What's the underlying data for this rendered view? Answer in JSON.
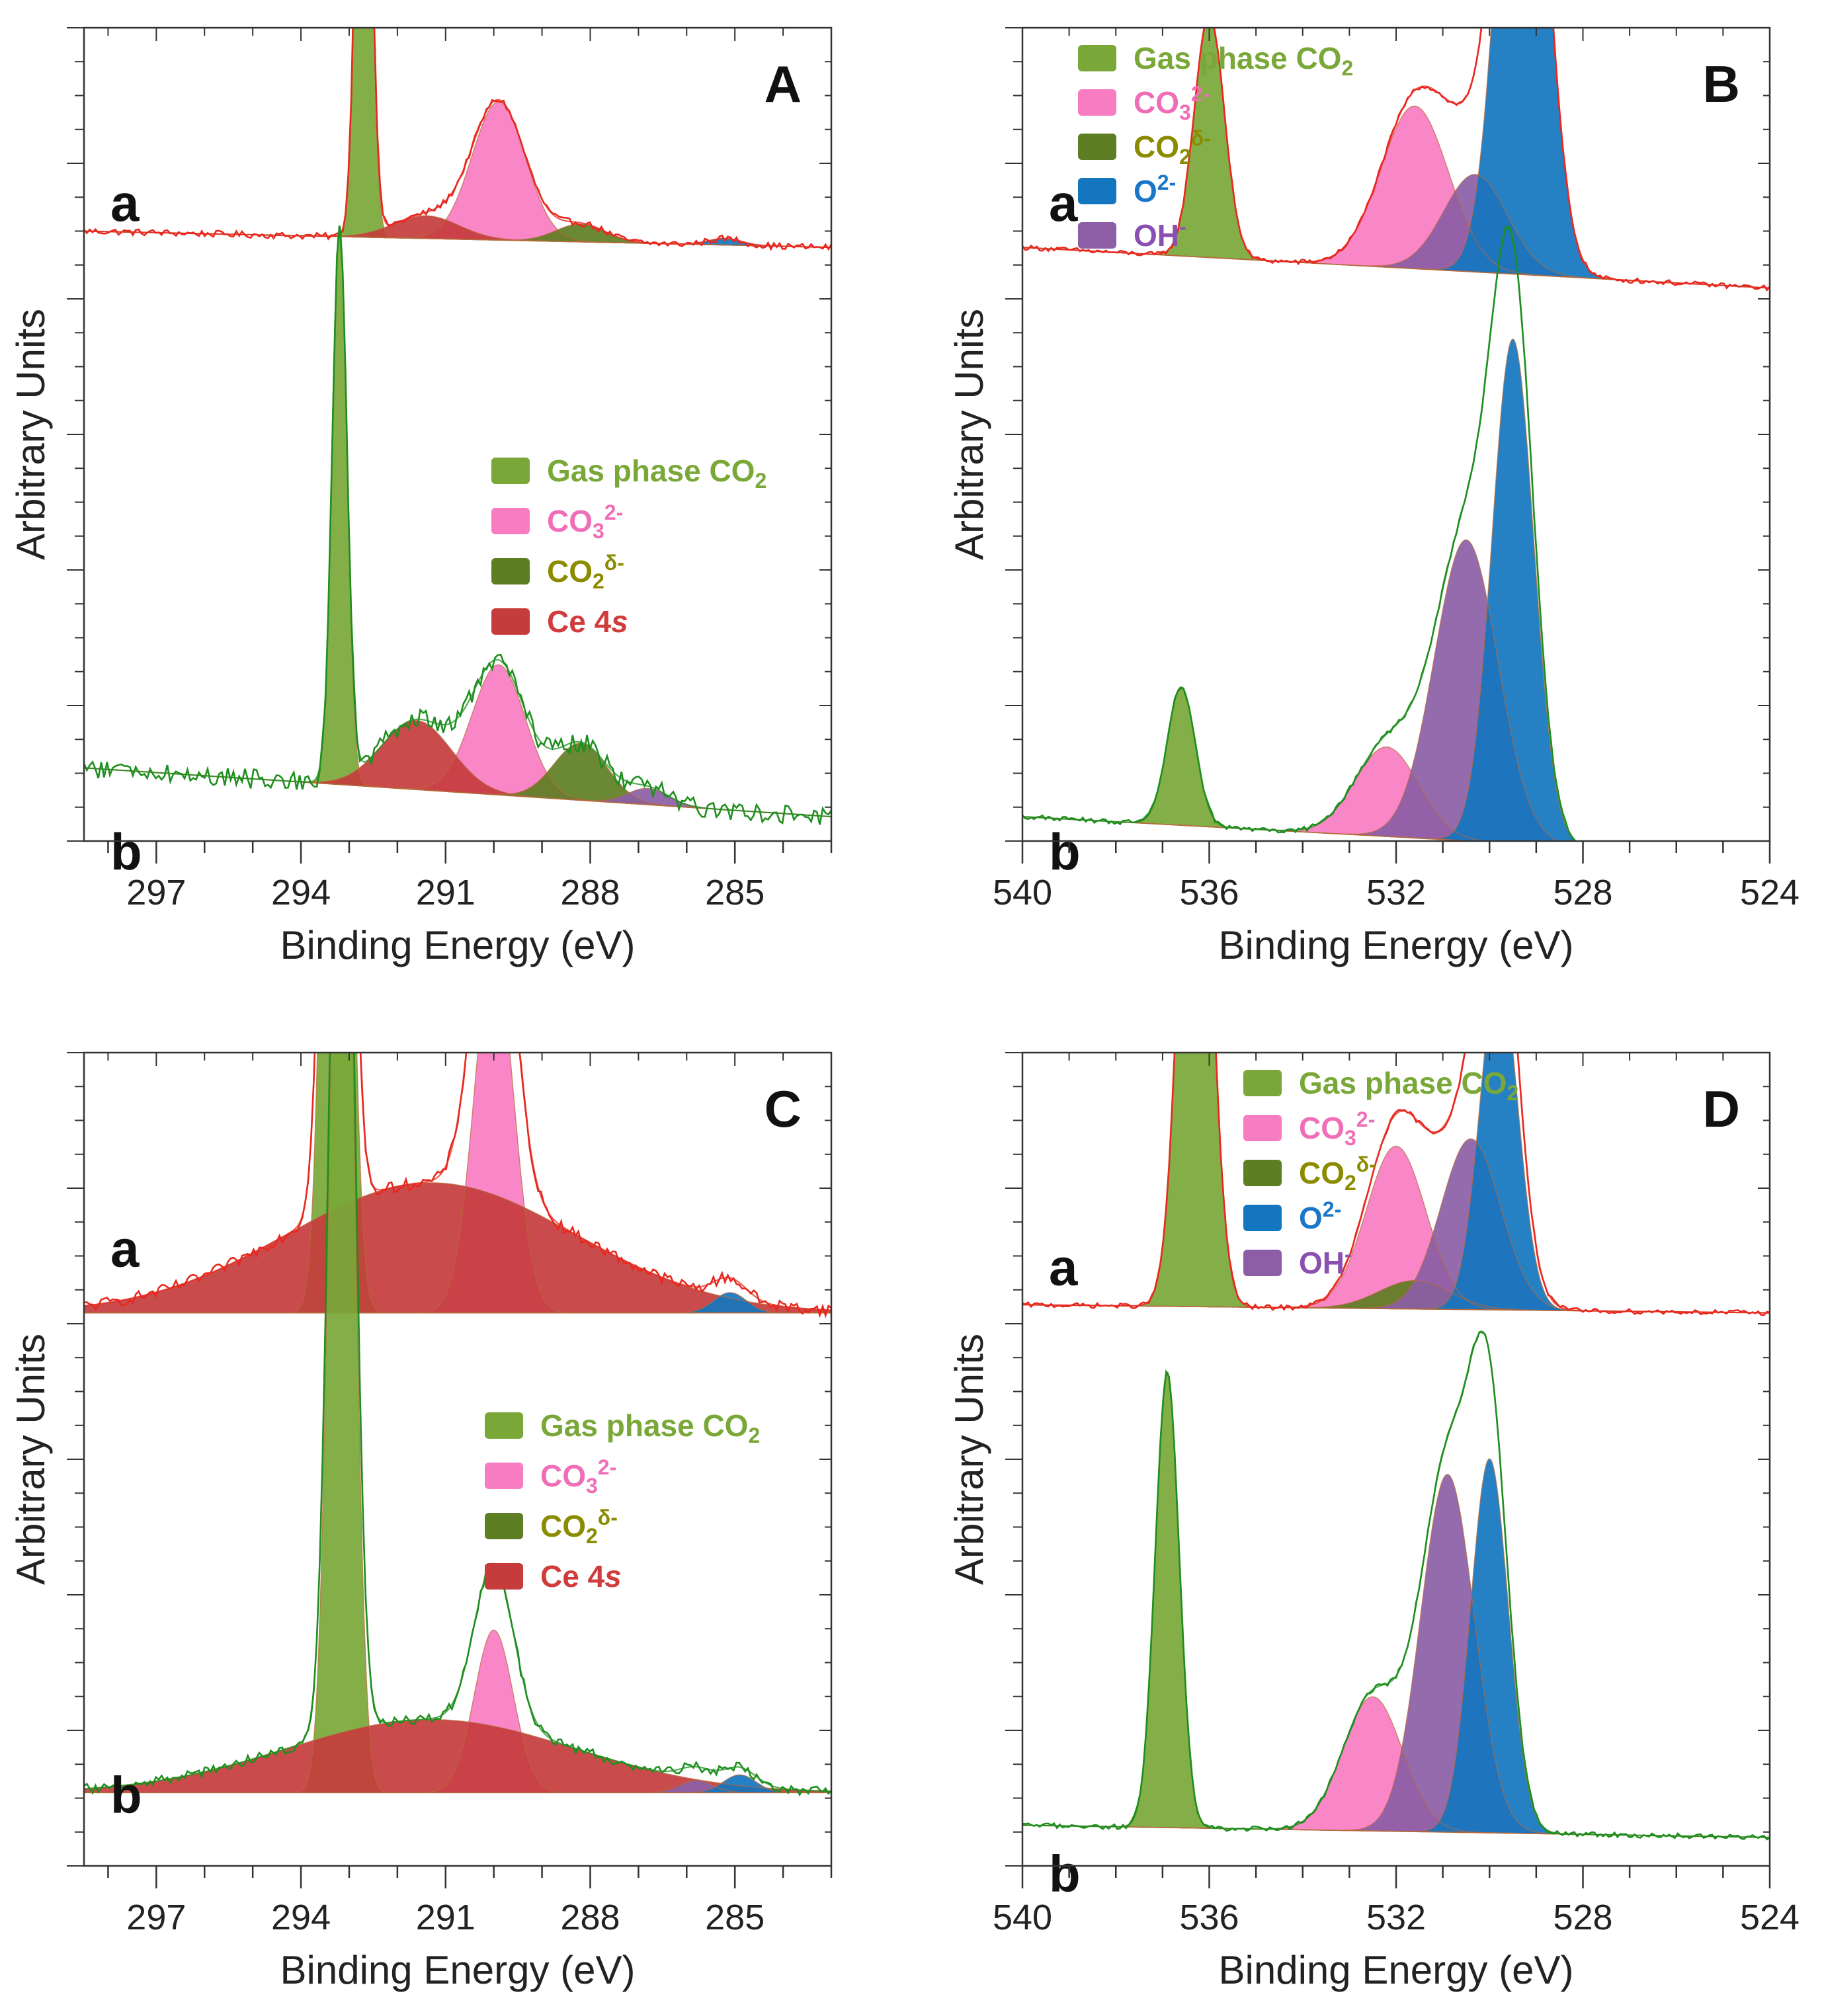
{
  "chart_data": [
    {
      "type": "area",
      "panel": "A",
      "xlabel": "Binding Energy (eV)",
      "ylabel": "Arbitrary Units",
      "xlim": [
        298.5,
        283.0
      ],
      "x_ticks": [
        297,
        294,
        291,
        288,
        285
      ],
      "legend": {
        "placement": "right, beside trace b",
        "entries": [
          {
            "component": "gas",
            "label": "Gas phase CO",
            "sub": "2",
            "sup": "",
            "italic": "",
            "color": "#79a838",
            "text_color": "#79a838"
          },
          {
            "component": "co3",
            "label": "CO",
            "sub": "3",
            "sup": "2-",
            "italic": "",
            "color": "#f87cc2",
            "text_color": "#f06db7"
          },
          {
            "component": "co2d",
            "label": "CO",
            "sub": "2",
            "sup": "δ-",
            "italic": "",
            "color": "#5e7e23",
            "text_color": "#8b8b00"
          },
          {
            "component": "ce4s",
            "label": "Ce 4",
            "sub": "",
            "sup": "",
            "italic": "s",
            "color": "#c63c3c",
            "text_color": "#d23b3b"
          }
        ]
      },
      "traces": [
        {
          "label": "a",
          "envelope_color": "#e8281f",
          "raw_color": "#e8281f",
          "offset": 0.73,
          "noise": 0.004,
          "baseline": {
            "x": [
              298.5,
              283.0
            ],
            "y": [
              0.02,
              0.0
            ]
          },
          "peaks": [
            {
              "component": "gas",
              "center": 292.7,
              "fwhm": 0.34,
              "height": 0.82
            },
            {
              "component": "co3",
              "center": 289.9,
              "fwhm": 1.3,
              "height": 0.17
            },
            {
              "component": "ce4s",
              "center": 291.4,
              "fwhm": 1.6,
              "height": 0.028
            },
            {
              "component": "co2d",
              "center": 288.2,
              "fwhm": 1.2,
              "height": 0.022
            },
            {
              "component": "o2",
              "center": 285.2,
              "fwhm": 0.8,
              "height": 0.008
            }
          ]
        },
        {
          "label": "b",
          "envelope_color": "#1e8f1e",
          "raw_color": "#1e8f1e",
          "offset": 0.03,
          "noise": 0.012,
          "baseline": {
            "x": [
              298.5,
              283.0
            ],
            "y": [
              0.06,
              0.0
            ]
          },
          "peaks": [
            {
              "component": "gas",
              "center": 293.2,
              "fwhm": 0.36,
              "height": 0.68
            },
            {
              "component": "co3",
              "center": 289.9,
              "fwhm": 1.3,
              "height": 0.16
            },
            {
              "component": "ce4s",
              "center": 291.6,
              "fwhm": 1.7,
              "height": 0.085
            },
            {
              "component": "co2d",
              "center": 288.2,
              "fwhm": 1.3,
              "height": 0.07
            },
            {
              "component": "oh",
              "center": 286.8,
              "fwhm": 1.0,
              "height": 0.02
            }
          ]
        }
      ]
    },
    {
      "type": "area",
      "panel": "B",
      "xlabel": "Binding Energy (eV)",
      "ylabel": "Arbitrary Units",
      "xlim": [
        540,
        524
      ],
      "x_ticks": [
        540,
        536,
        532,
        528,
        524
      ],
      "legend": {
        "placement": "top-left",
        "entries": [
          {
            "component": "gas",
            "label": "Gas phase CO",
            "sub": "2",
            "sup": "",
            "italic": "",
            "color": "#79a838",
            "text_color": "#79a838"
          },
          {
            "component": "co3",
            "label": "CO",
            "sub": "3",
            "sup": "2-",
            "italic": "",
            "color": "#f87cc2",
            "text_color": "#f06db7"
          },
          {
            "component": "co2d",
            "label": "CO",
            "sub": "2",
            "sup": "δ-",
            "italic": "",
            "color": "#5e7e23",
            "text_color": "#8b8b00"
          },
          {
            "component": "o2",
            "label": "O",
            "sub": "",
            "sup": "2-",
            "italic": "",
            "color": "#1476bf",
            "text_color": "#1976c9"
          },
          {
            "component": "oh",
            "label": "OH",
            "sub": "",
            "sup": "-",
            "italic": "",
            "color": "#8b5ea6",
            "text_color": "#8a4fb0"
          }
        ]
      },
      "traces": [
        {
          "label": "a",
          "envelope_color": "#e8281f",
          "raw_color": "#e8281f",
          "offset": 0.73,
          "noise": 0.003,
          "baseline": {
            "x": [
              540,
              524
            ],
            "y": [
              0.0,
              -0.05
            ]
          },
          "peaks": [
            {
              "component": "gas",
              "center": 536.0,
              "fwhm": 0.75,
              "height": 0.3
            },
            {
              "component": "co3",
              "center": 531.6,
              "fwhm": 1.7,
              "height": 0.2
            },
            {
              "component": "oh",
              "center": 530.3,
              "fwhm": 1.6,
              "height": 0.12
            },
            {
              "component": "o2",
              "center": 529.3,
              "fwhm": 1.15,
              "height": 0.76
            }
          ]
        },
        {
          "label": "b",
          "envelope_color": "#1e8f1e",
          "raw_color": "#1e8f1e",
          "offset": 0.03,
          "noise": 0.003,
          "baseline": {
            "x": [
              540,
              524
            ],
            "y": [
              0.0,
              -0.05
            ]
          },
          "peaks": [
            {
              "component": "gas",
              "center": 536.6,
              "fwhm": 0.7,
              "height": 0.17
            },
            {
              "component": "co3",
              "center": 532.2,
              "fwhm": 1.6,
              "height": 0.11
            },
            {
              "component": "oh",
              "center": 530.5,
              "fwhm": 1.6,
              "height": 0.37
            },
            {
              "component": "o2",
              "center": 529.5,
              "fwhm": 1.05,
              "height": 0.62
            }
          ]
        }
      ]
    },
    {
      "type": "area",
      "panel": "C",
      "xlabel": "Binding Energy (eV)",
      "ylabel": "Arbitrary Units",
      "xlim": [
        298.5,
        283.0
      ],
      "x_ticks": [
        297,
        294,
        291,
        288,
        285
      ],
      "legend": {
        "placement": "right, beside trace b",
        "entries": [
          {
            "component": "gas",
            "label": "Gas phase CO",
            "sub": "2",
            "sup": "",
            "italic": "",
            "color": "#79a838",
            "text_color": "#79a838"
          },
          {
            "component": "co3",
            "label": "CO",
            "sub": "3",
            "sup": "2-",
            "italic": "",
            "color": "#f87cc2",
            "text_color": "#f06db7"
          },
          {
            "component": "co2d",
            "label": "CO",
            "sub": "2",
            "sup": "δ-",
            "italic": "",
            "color": "#5e7e23",
            "text_color": "#8b8b00"
          },
          {
            "component": "ce4s",
            "label": "Ce 4",
            "sub": "",
            "sup": "",
            "italic": "s",
            "color": "#c63c3c",
            "text_color": "#d23b3b"
          }
        ]
      },
      "traces": [
        {
          "label": "a",
          "envelope_color": "#e8281f",
          "raw_color": "#e8281f",
          "offset": 0.68,
          "noise": 0.007,
          "baseline": {
            "x": [
              298.5,
              283.0
            ],
            "y": [
              0.0,
              0.0
            ]
          },
          "peaks": [
            {
              "component": "gas",
              "center": 293.25,
              "fwhm": 0.55,
              "height": 1.5
            },
            {
              "component": "co3",
              "center": 290.0,
              "fwhm": 0.95,
              "height": 0.45
            },
            {
              "component": "ce4s",
              "center": 291.3,
              "fwhm": 7.0,
              "height": 0.16
            },
            {
              "component": "o2",
              "center": 285.1,
              "fwhm": 0.8,
              "height": 0.025
            }
          ]
        },
        {
          "label": "b",
          "envelope_color": "#1e8f1e",
          "raw_color": "#1e8f1e",
          "offset": 0.09,
          "noise": 0.006,
          "baseline": {
            "x": [
              298.5,
              283.0
            ],
            "y": [
              0.0,
              0.0
            ]
          },
          "peaks": [
            {
              "component": "gas",
              "center": 293.15,
              "fwhm": 0.55,
              "height": 1.5
            },
            {
              "component": "co3",
              "center": 290.0,
              "fwhm": 0.95,
              "height": 0.2
            },
            {
              "component": "ce4s",
              "center": 291.3,
              "fwhm": 7.0,
              "height": 0.09
            },
            {
              "component": "oh",
              "center": 285.8,
              "fwhm": 0.8,
              "height": 0.015
            },
            {
              "component": "o2",
              "center": 284.9,
              "fwhm": 0.8,
              "height": 0.022
            }
          ]
        }
      ]
    },
    {
      "type": "area",
      "panel": "D",
      "xlabel": "Binding Energy (eV)",
      "ylabel": "Arbitrary Units",
      "xlim": [
        540,
        524
      ],
      "x_ticks": [
        540,
        536,
        532,
        528,
        524
      ],
      "legend": {
        "placement": "top-left",
        "entries": [
          {
            "component": "gas",
            "label": "Gas phase CO",
            "sub": "2",
            "sup": "",
            "italic": "",
            "color": "#79a838",
            "text_color": "#79a838"
          },
          {
            "component": "co3",
            "label": "CO",
            "sub": "3",
            "sup": "2-",
            "italic": "",
            "color": "#f87cc2",
            "text_color": "#f06db7"
          },
          {
            "component": "co2d",
            "label": "CO",
            "sub": "2",
            "sup": "δ-",
            "italic": "",
            "color": "#5e7e23",
            "text_color": "#8b8b00"
          },
          {
            "component": "o2",
            "label": "O",
            "sub": "",
            "sup": "2-",
            "italic": "",
            "color": "#1476bf",
            "text_color": "#1976c9"
          },
          {
            "component": "oh",
            "label": "OH",
            "sub": "",
            "sup": "-",
            "italic": "",
            "color": "#8b5ea6",
            "text_color": "#8a4fb0"
          }
        ]
      },
      "traces": [
        {
          "label": "a",
          "envelope_color": "#e8281f",
          "raw_color": "#e8281f",
          "offset": 0.69,
          "noise": 0.003,
          "baseline": {
            "x": [
              540,
              524
            ],
            "y": [
              0.0,
              -0.01
            ]
          },
          "peaks": [
            {
              "component": "gas",
              "center": 536.3,
              "fwhm": 0.75,
              "height": 0.82
            },
            {
              "component": "co3",
              "center": 532.0,
              "fwhm": 1.5,
              "height": 0.2
            },
            {
              "component": "co2d",
              "center": 531.6,
              "fwhm": 1.8,
              "height": 0.035
            },
            {
              "component": "oh",
              "center": 530.4,
              "fwhm": 1.5,
              "height": 0.21
            },
            {
              "component": "o2",
              "center": 529.8,
              "fwhm": 0.95,
              "height": 0.42
            }
          ]
        },
        {
          "label": "b",
          "envelope_color": "#1e8f1e",
          "raw_color": "#1e8f1e",
          "offset": 0.05,
          "noise": 0.003,
          "baseline": {
            "x": [
              540,
              524
            ],
            "y": [
              0.0,
              -0.015
            ]
          },
          "peaks": [
            {
              "component": "gas",
              "center": 536.9,
              "fwhm": 0.6,
              "height": 0.56
            },
            {
              "component": "co3",
              "center": 532.5,
              "fwhm": 1.5,
              "height": 0.165
            },
            {
              "component": "oh",
              "center": 530.9,
              "fwhm": 1.35,
              "height": 0.44
            },
            {
              "component": "o2",
              "center": 530.0,
              "fwhm": 0.95,
              "height": 0.46
            }
          ]
        }
      ]
    }
  ]
}
